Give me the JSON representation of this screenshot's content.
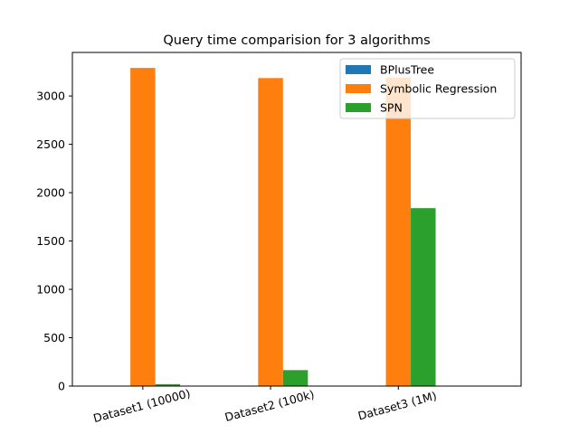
{
  "chart_data": {
    "type": "bar",
    "title": "Query time comparision for 3 algorithms",
    "categories": [
      "Dataset1 (10000)",
      "Dataset2 (100k)",
      "Dataset3 (1M)"
    ],
    "series": [
      {
        "name": "BPlusTree",
        "color": "#1f77b4",
        "values": [
          0,
          0,
          0
        ]
      },
      {
        "name": "Symbolic Regression",
        "color": "#ff7f0e",
        "values": [
          3290,
          3185,
          3190
        ]
      },
      {
        "name": "SPN",
        "color": "#2ca02c",
        "values": [
          20,
          165,
          1840
        ]
      }
    ],
    "ylim": [
      0,
      3450
    ],
    "yticks": [
      "0",
      "500",
      "1000",
      "1500",
      "2000",
      "2500",
      "3000"
    ],
    "xlabel": "",
    "ylabel": "",
    "legend_position": "top-right",
    "grid": false
  }
}
